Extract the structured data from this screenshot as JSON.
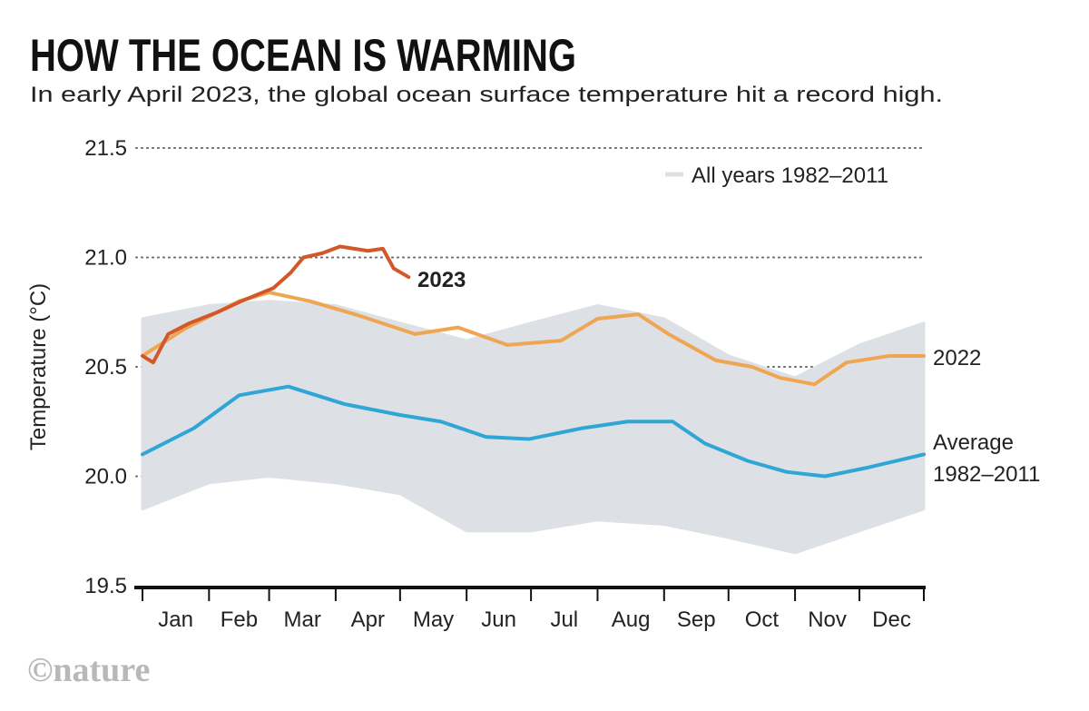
{
  "chart_data": {
    "type": "line",
    "title": "HOW THE OCEAN IS WARMING",
    "subtitle": "In early April 2023, the global ocean surface temperature hit a record high.",
    "ylabel": "Temperature (°C)",
    "xlabel": "",
    "ylim": [
      19.5,
      21.5
    ],
    "yticks": [
      "19.5",
      "20.0",
      "20.5",
      "21.0",
      "21.5"
    ],
    "ytick_values": [
      19.5,
      20.0,
      20.5,
      21.0,
      21.5
    ],
    "xticks": [
      "Jan",
      "Feb",
      "Mar",
      "Apr",
      "May",
      "Jun",
      "Jul",
      "Aug",
      "Sep",
      "Oct",
      "Nov",
      "Dec"
    ],
    "grid": "horizontal dotted",
    "legend": {
      "label": "All years 1982–2011",
      "placement": "top-right"
    },
    "colors": {
      "all_years": "#dde1e6",
      "y2023": "#d4572a",
      "y2022": "#eea653",
      "average": "#2fa6d6"
    },
    "all_years_range": {
      "dates": [
        "01-01",
        "02-01",
        "03-01",
        "04-01",
        "05-01",
        "06-01",
        "07-01",
        "08-01",
        "09-01",
        "10-01",
        "11-01",
        "12-01",
        "12-31"
      ],
      "low": [
        19.85,
        19.97,
        20.0,
        19.97,
        19.92,
        19.75,
        19.75,
        19.8,
        19.78,
        19.72,
        19.65,
        19.75,
        19.85
      ],
      "high": [
        20.72,
        20.78,
        20.8,
        20.78,
        20.7,
        20.62,
        20.7,
        20.78,
        20.72,
        20.55,
        20.45,
        20.6,
        20.7
      ]
    },
    "series": [
      {
        "name": "2023",
        "label": "2023",
        "dates": [
          "01-01",
          "01-06",
          "01-13",
          "01-23",
          "02-05",
          "02-16",
          "03-03",
          "03-11",
          "03-17",
          "03-26",
          "04-03",
          "04-16",
          "04-23",
          "04-28",
          "05-05"
        ],
        "values": [
          20.55,
          20.52,
          20.65,
          20.7,
          20.75,
          20.8,
          20.86,
          20.93,
          21.0,
          21.02,
          21.05,
          21.03,
          21.04,
          20.95,
          20.91
        ]
      },
      {
        "name": "2022",
        "label": "2022",
        "dates": [
          "01-01",
          "01-20",
          "02-15",
          "03-01",
          "03-20",
          "04-10",
          "05-08",
          "05-28",
          "06-20",
          "07-15",
          "08-01",
          "08-20",
          "09-03",
          "09-25",
          "10-12",
          "10-25",
          "11-10",
          "11-25",
          "12-15",
          "12-31"
        ],
        "values": [
          20.55,
          20.67,
          20.8,
          20.84,
          20.8,
          20.74,
          20.65,
          20.68,
          20.6,
          20.62,
          20.72,
          20.74,
          20.65,
          20.53,
          20.5,
          20.45,
          20.42,
          20.52,
          20.55,
          20.55
        ]
      },
      {
        "name": "Average 1982–2011",
        "label_line1": "Average",
        "label_line2": "1982–2011",
        "dates": [
          "01-01",
          "01-25",
          "02-15",
          "03-10",
          "04-05",
          "05-01",
          "05-20",
          "06-10",
          "06-30",
          "07-25",
          "08-15",
          "09-05",
          "09-20",
          "10-10",
          "10-28",
          "11-15",
          "12-05",
          "12-31"
        ],
        "values": [
          20.1,
          20.22,
          20.37,
          20.41,
          20.33,
          20.28,
          20.25,
          20.18,
          20.17,
          20.22,
          20.25,
          20.25,
          20.15,
          20.07,
          20.02,
          20.0,
          20.04,
          20.1
        ]
      }
    ]
  },
  "credit": "©nature"
}
